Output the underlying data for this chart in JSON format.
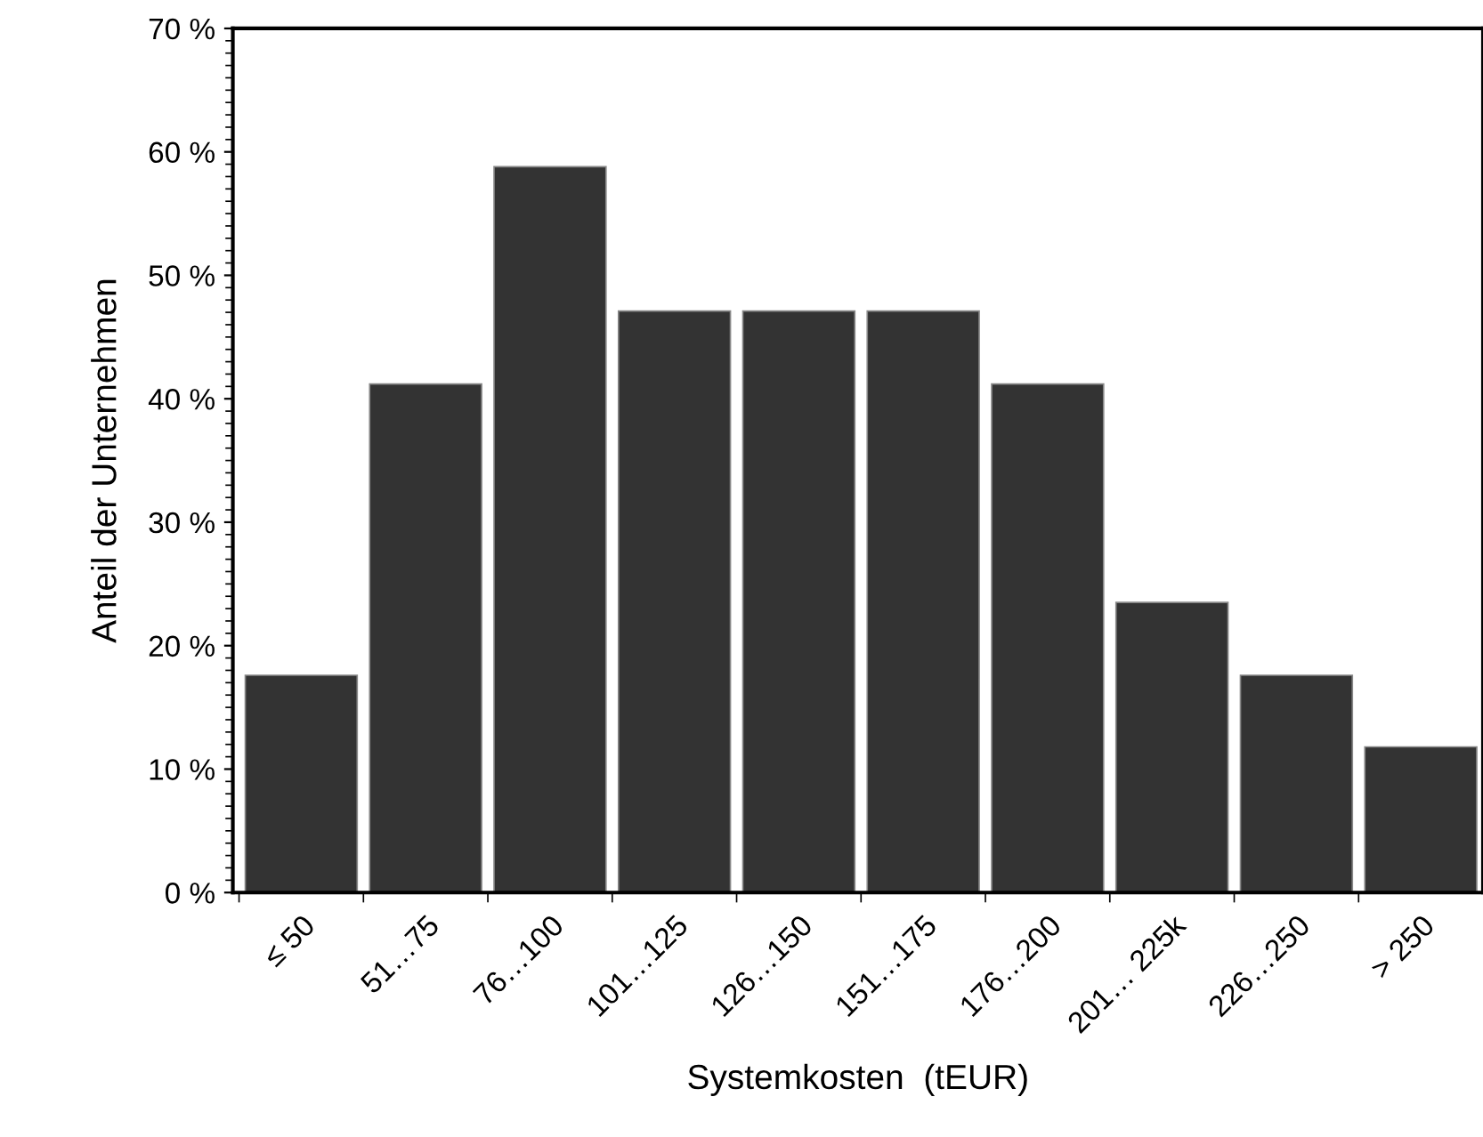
{
  "chart_data": {
    "type": "bar",
    "xlabel": "Systemkosten  (tEUR)",
    "ylabel": "Anteil der Unternehmen",
    "categories": [
      "≤ 50",
      "51…75",
      "76…100",
      "101…125",
      "126…150",
      "151…175",
      "176…200",
      "201… 225k",
      "226…250",
      "> 250"
    ],
    "values": [
      17.6,
      41.2,
      58.8,
      47.1,
      47.1,
      47.1,
      41.2,
      23.5,
      17.6,
      11.8
    ],
    "color": "#333333",
    "ylim": [
      0,
      70
    ],
    "yticks": [
      {
        "value": 0,
        "label": "0 %"
      },
      {
        "value": 10,
        "label": "10 %"
      },
      {
        "value": 20,
        "label": "20 %"
      },
      {
        "value": 30,
        "label": "30 %"
      },
      {
        "value": 40,
        "label": "40 %"
      },
      {
        "value": 50,
        "label": "50 %"
      },
      {
        "value": 60,
        "label": "60 %"
      },
      {
        "value": 70,
        "label": "70 %"
      }
    ],
    "grid": false
  }
}
